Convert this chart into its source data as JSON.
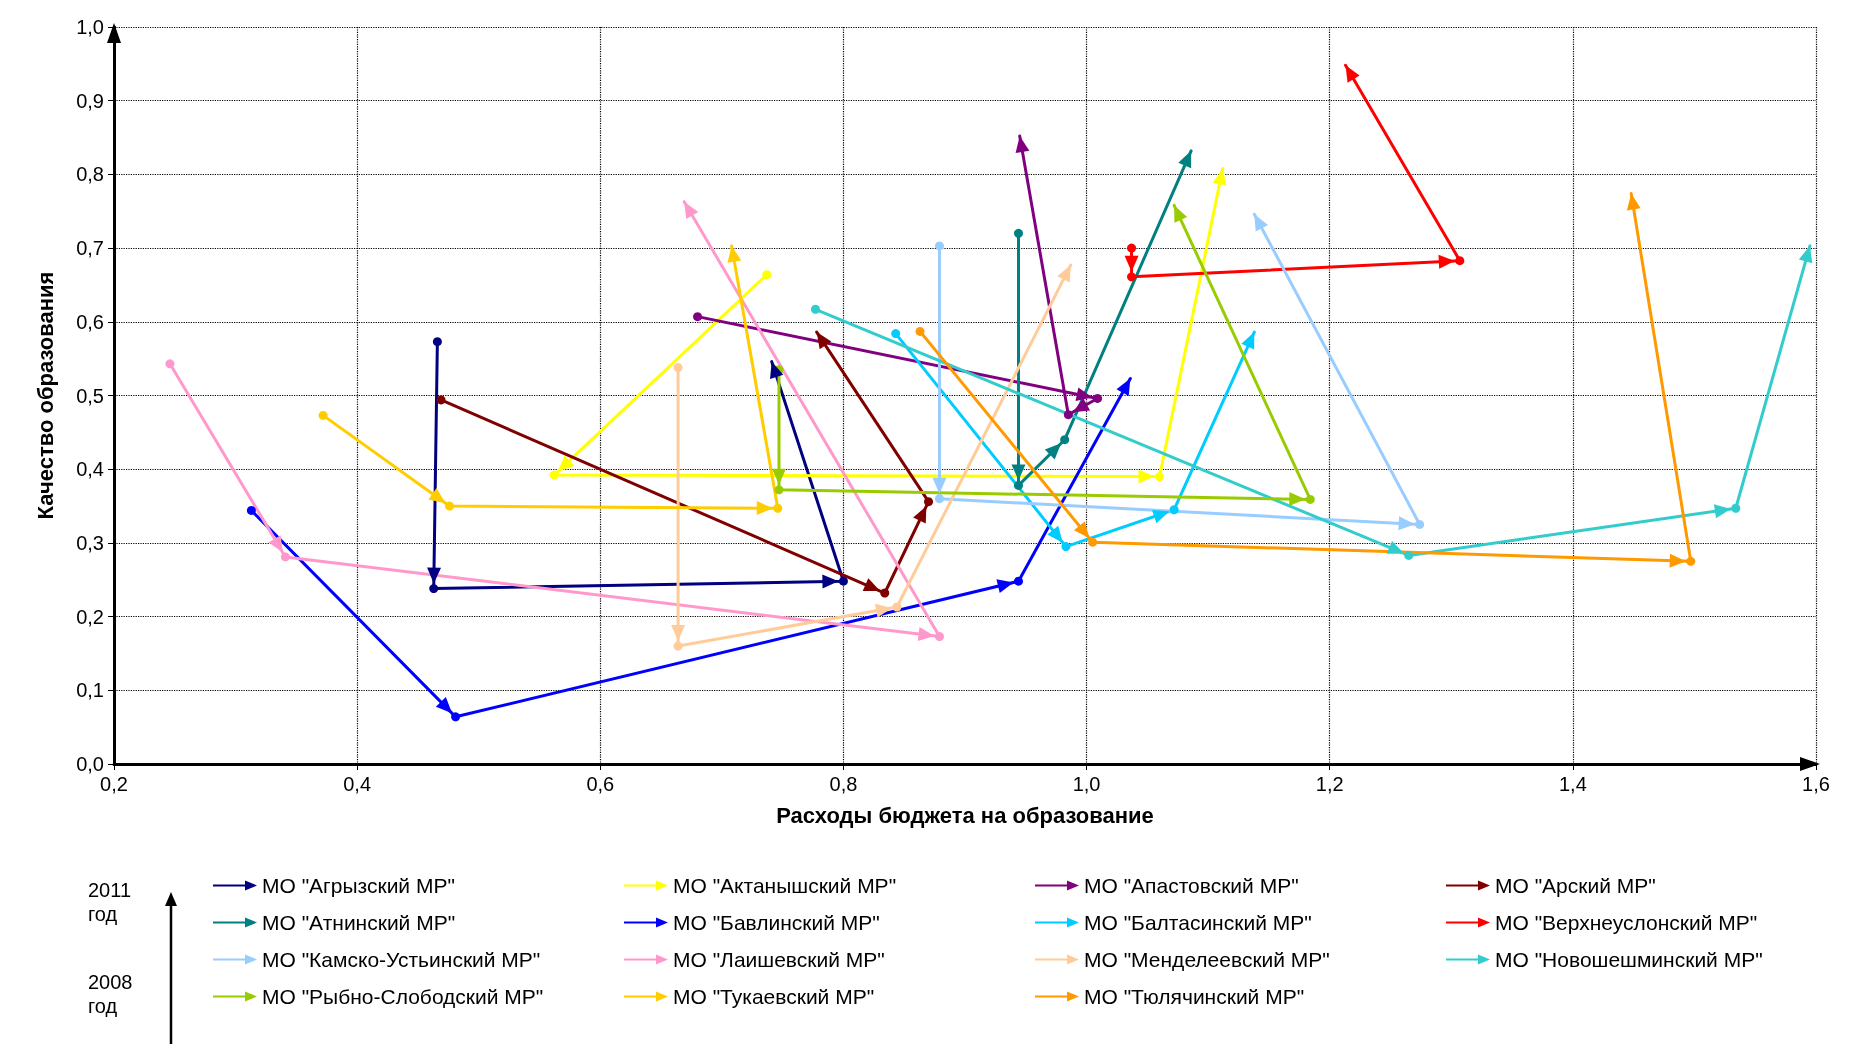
{
  "chart_data": {
    "type": "line",
    "xlabel": "Расходы бюджета на образование",
    "ylabel": "Качество образования",
    "xlim": [
      0.2,
      1.6
    ],
    "ylim": [
      0,
      1.0
    ],
    "xticks": [
      {
        "value": 0.2,
        "label": "0,2"
      },
      {
        "value": 0.4,
        "label": "0,4"
      },
      {
        "value": 0.6,
        "label": "0,6"
      },
      {
        "value": 0.8,
        "label": "0,8"
      },
      {
        "value": 1.0,
        "label": "1,0"
      },
      {
        "value": 1.2,
        "label": "1,2"
      },
      {
        "value": 1.4,
        "label": "1,4"
      },
      {
        "value": 1.6,
        "label": "1,6"
      }
    ],
    "yticks": [
      {
        "value": 0,
        "label": "0,0"
      },
      {
        "value": 0.1,
        "label": "0,1"
      },
      {
        "value": 0.2,
        "label": "0,2"
      },
      {
        "value": 0.3,
        "label": "0,3"
      },
      {
        "value": 0.4,
        "label": "0,4"
      },
      {
        "value": 0.5,
        "label": "0,5"
      },
      {
        "value": 0.6,
        "label": "0,6"
      },
      {
        "value": 0.7,
        "label": "0,7"
      },
      {
        "value": 0.8,
        "label": "0,8"
      },
      {
        "value": 0.9,
        "label": "0,9"
      },
      {
        "value": 1.0,
        "label": "1,0"
      }
    ],
    "grid": true,
    "legend": "bottom",
    "marker": "circle",
    "line_style": "solid",
    "annotations": [
      "2011 год",
      "2008 год"
    ],
    "series": [
      {
        "name": "МО \"Агрызский МР\"",
        "color": "#000080",
        "x": [
          0.466,
          0.463,
          0.8,
          0.741
        ],
        "values": [
          0.573,
          0.238,
          0.248,
          0.546
        ]
      },
      {
        "name": "МО \"Актанышский МР\"",
        "color": "#ffff00",
        "x": [
          0.737,
          0.562,
          1.06,
          1.112
        ],
        "values": [
          0.664,
          0.392,
          0.39,
          0.808
        ]
      },
      {
        "name": "МО \"Апастовский МР\"",
        "color": "#800080",
        "x": [
          0.68,
          1.009,
          0.985,
          0.945
        ],
        "values": [
          0.607,
          0.496,
          0.474,
          0.852
        ]
      },
      {
        "name": "МО \"Арский МР\"",
        "color": "#800000",
        "x": [
          0.469,
          0.834,
          0.87,
          0.778
        ],
        "values": [
          0.494,
          0.232,
          0.356,
          0.586
        ]
      },
      {
        "name": "МО \"Атнинский МР\"",
        "color": "#008080",
        "x": [
          0.944,
          0.944,
          0.982,
          1.086
        ],
        "values": [
          0.72,
          0.378,
          0.44,
          0.832
        ]
      },
      {
        "name": "МО \"Бавлинский МР\"",
        "color": "#0000ff",
        "x": [
          0.313,
          0.481,
          0.944,
          1.036
        ],
        "values": [
          0.344,
          0.064,
          0.248,
          0.523
        ]
      },
      {
        "name": "МО \"Балтасинский МР\"",
        "color": "#00ccff",
        "x": [
          0.843,
          0.983,
          1.072,
          1.138
        ],
        "values": [
          0.584,
          0.295,
          0.345,
          0.586
        ]
      },
      {
        "name": "МО \"Верхнеуслонский МР\"",
        "color": "#ff0000",
        "x": [
          1.037,
          1.037,
          1.307,
          1.213
        ],
        "values": [
          0.7,
          0.661,
          0.683,
          0.948
        ]
      },
      {
        "name": "МО \"Камско-Устьинский МР\"",
        "color": "#99ccff",
        "x": [
          0.879,
          0.879,
          1.274,
          1.138
        ],
        "values": [
          0.703,
          0.36,
          0.325,
          0.746
        ]
      },
      {
        "name": "МО \"Лаишевский МР\"",
        "color": "#ff99cc",
        "x": [
          0.246,
          0.341,
          0.879,
          0.669
        ],
        "values": [
          0.543,
          0.281,
          0.173,
          0.763
        ]
      },
      {
        "name": "МО \"Менделеевский МР\"",
        "color": "#ffcc99",
        "x": [
          0.664,
          0.664,
          0.844,
          0.987
        ],
        "values": [
          0.538,
          0.16,
          0.213,
          0.677
        ]
      },
      {
        "name": "МО \"Новошешминский МР\"",
        "color": "#33cccc",
        "x": [
          0.777,
          1.265,
          1.534,
          1.595
        ],
        "values": [
          0.617,
          0.283,
          0.347,
          0.703
        ]
      },
      {
        "name": "МО \"Рыбно-Слободский МР\"",
        "color": "#99cc00",
        "x": [
          0.747,
          0.747,
          1.184,
          1.072
        ],
        "values": [
          0.535,
          0.372,
          0.359,
          0.758
        ]
      },
      {
        "name": "МО \"Тукаевский МР\"",
        "color": "#ffcc00",
        "x": [
          0.372,
          0.476,
          0.746,
          0.708
        ],
        "values": [
          0.473,
          0.35,
          0.347,
          0.703
        ]
      },
      {
        "name": "МО \"Тюлячинский МР\"",
        "color": "#ff9900",
        "x": [
          0.863,
          1.005,
          1.497,
          1.448
        ],
        "values": [
          0.587,
          0.301,
          0.275,
          0.774
        ]
      }
    ]
  }
}
